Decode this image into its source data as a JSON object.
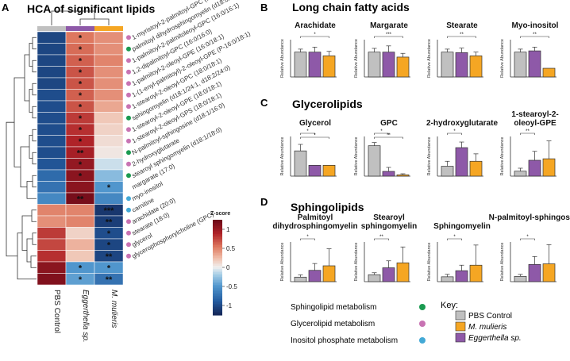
{
  "panels": {
    "a": {
      "letter": "A",
      "title": "HCA of significant lipids"
    },
    "b": {
      "letter": "B",
      "title": "Long chain fatty acids"
    },
    "c": {
      "letter": "C",
      "title": "Glycerolipids"
    },
    "d": {
      "letter": "D",
      "title": "Sphingolipids"
    }
  },
  "colors": {
    "pbs": "#c0c0c0",
    "mulieris": "#f5a623",
    "eggerthella": "#8e59a8",
    "sphingo_dot": "#1a9a50",
    "glycero_dot": "#c873b3",
    "inositol_dot": "#43a9d6"
  },
  "legend": {
    "pathways": [
      {
        "label": "Sphingolipid metabolism",
        "color_key": "sphingo_dot"
      },
      {
        "label": "Glycerolipid metabolism",
        "color_key": "glycero_dot"
      },
      {
        "label": "Inositol phosphate metabolism",
        "color_key": "inositol_dot"
      }
    ],
    "key_title": "Key:",
    "groups": [
      {
        "label": "PBS Control",
        "color_key": "pbs"
      },
      {
        "label": "M. mulieris",
        "color_key": "mulieris"
      },
      {
        "label": "Eggerthella sp.",
        "color_key": "eggerthella"
      }
    ]
  },
  "chart_data": [
    {
      "type": "heatmap",
      "title": "HCA of significant lipids",
      "columns": [
        "PBS Control",
        "Eggerthella sp.",
        "M. mulieris"
      ],
      "colorbar": {
        "title": "Z-score",
        "ticks": [
          "1",
          "0.5",
          "0",
          "-0.5",
          "-1"
        ],
        "range": [
          -1.25,
          1.25
        ]
      },
      "rows": [
        {
          "name": "1-myristoyl-2-palmitoyl-GPC (14:0/16:0)",
          "pathway": "glycero",
          "z": [
            -1.05,
            0.55,
            0.45
          ],
          "stars": [
            "",
            "*",
            ""
          ]
        },
        {
          "name": "palmitoyl dihydrosphingomyelin (d18:0/16:0)",
          "pathway": "sphingo",
          "z": [
            -1.05,
            0.6,
            0.45
          ],
          "stars": [
            "",
            "*",
            ""
          ]
        },
        {
          "name": "1-palmitoyl-2-palmitoleoyl-GPC (16:0/16:1)",
          "pathway": "glycero",
          "z": [
            -1.05,
            0.65,
            0.5
          ],
          "stars": [
            "",
            "*",
            ""
          ]
        },
        {
          "name": "1,2-dipalmitoyl-GPC (16:0/16:0)",
          "pathway": "glycero",
          "z": [
            -1.05,
            0.7,
            0.45
          ],
          "stars": [
            "",
            "*",
            ""
          ]
        },
        {
          "name": "1-palmitoyl-2-oleoyl-GPE (16:0/18:1)",
          "pathway": "glycero",
          "z": [
            -1.05,
            0.7,
            0.45
          ],
          "stars": [
            "",
            "*",
            ""
          ]
        },
        {
          "name": "1-(1-enyl-palmitoyl)-2-oleoyl-GPE (P-16:0/18:1)",
          "pathway": "glycero",
          "z": [
            -1.0,
            0.65,
            0.45
          ],
          "stars": [
            "",
            "*",
            ""
          ]
        },
        {
          "name": "1-stearoyl-2-oleoyl-GPC (18:0/18:1)",
          "pathway": "glycero",
          "z": [
            -1.0,
            0.7,
            0.35
          ],
          "stars": [
            "",
            "*",
            ""
          ]
        },
        {
          "name": "sphingomyelin (d18:1/24:1, d18:2/24:0)",
          "pathway": "sphingo",
          "z": [
            -1.0,
            0.8,
            0.2
          ],
          "stars": [
            "",
            "*",
            ""
          ]
        },
        {
          "name": "1-stearoyl-2-oleoyl-GPE (18:0/18:1)",
          "pathway": "glycero",
          "z": [
            -1.0,
            0.85,
            0.15
          ],
          "stars": [
            "",
            "*",
            ""
          ]
        },
        {
          "name": "1-stearoyl-2-oleoyl-GPS (18:0/18:1)",
          "pathway": "glycero",
          "z": [
            -1.0,
            0.9,
            0.1
          ],
          "stars": [
            "",
            "*",
            ""
          ]
        },
        {
          "name": "N-palmitoyl-sphingosine (d18:1/16:0)",
          "pathway": "sphingo",
          "z": [
            -1.0,
            0.95,
            0.05
          ],
          "stars": [
            "",
            "**",
            ""
          ]
        },
        {
          "name": "2-hydroxyglutarate",
          "pathway": "glycero",
          "z": [
            -0.95,
            1.05,
            -0.1
          ],
          "stars": [
            "",
            "*",
            ""
          ]
        },
        {
          "name": "stearoyl sphingomyelin (d18:1/18:0)",
          "pathway": "sphingo",
          "z": [
            -0.8,
            1.1,
            -0.3
          ],
          "stars": [
            "",
            "*",
            ""
          ]
        },
        {
          "name": "margarate (17:0)",
          "pathway": "",
          "z": [
            -0.75,
            1.1,
            -0.5
          ],
          "stars": [
            "",
            "",
            "*"
          ]
        },
        {
          "name": "myo-inositol",
          "pathway": "inositol",
          "z": [
            -0.6,
            1.2,
            -0.6
          ],
          "stars": [
            "",
            "**",
            ""
          ]
        },
        {
          "name": "carnitine",
          "pathway": "inositol",
          "z": [
            0.5,
            0.5,
            -1.15
          ],
          "stars": [
            "",
            "",
            "***"
          ]
        },
        {
          "name": "arachidate (20:0)",
          "pathway": "glycero",
          "z": [
            0.45,
            0.5,
            -1.1
          ],
          "stars": [
            "",
            "",
            "**"
          ]
        },
        {
          "name": "stearate (18:0)",
          "pathway": "glycero",
          "z": [
            0.8,
            0.15,
            -1.0
          ],
          "stars": [
            "",
            "",
            "*"
          ]
        },
        {
          "name": "glycerol",
          "pathway": "glycero",
          "z": [
            0.75,
            0.3,
            -1.05
          ],
          "stars": [
            "",
            "",
            "*"
          ]
        },
        {
          "name": "glycerophosphorylcholine (GPC)",
          "pathway": "glycero",
          "z": [
            0.85,
            0.2,
            -1.05
          ],
          "stars": [
            "",
            "",
            "**"
          ]
        },
        {
          "name": "",
          "pathway": "",
          "z": [
            1.1,
            -0.5,
            -0.5
          ],
          "stars": [
            "",
            "*",
            "*"
          ]
        },
        {
          "name": "",
          "pathway": "",
          "z": [
            1.15,
            -0.45,
            -0.75
          ],
          "stars": [
            "",
            "*",
            "**"
          ]
        }
      ]
    },
    {
      "type": "bar",
      "panel": "B",
      "title": "Arachidate",
      "ylabel": "Relative Abundance",
      "ylim": [
        0,
        1.5
      ],
      "categories": [
        "PBS Control",
        "Eggerthella sp.",
        "M. mulieris"
      ],
      "values": [
        1.0,
        1.0,
        0.85
      ],
      "errors": [
        0.12,
        0.2,
        0.18
      ],
      "sig": [
        {
          "from": 0,
          "to": 2,
          "label": "*"
        }
      ]
    },
    {
      "type": "bar",
      "panel": "B",
      "title": "Margarate",
      "ylabel": "Relative Abundance",
      "ylim": [
        0,
        1.5
      ],
      "categories": [
        "PBS Control",
        "Eggerthella sp.",
        "M. mulieris"
      ],
      "values": [
        1.0,
        1.0,
        0.8
      ],
      "errors": [
        0.15,
        0.25,
        0.15
      ],
      "sig": [
        {
          "from": 0,
          "to": 2,
          "label": "***"
        }
      ]
    },
    {
      "type": "bar",
      "panel": "B",
      "title": "Stearate",
      "ylabel": "Relative Abundance",
      "ylim": [
        0,
        1.5
      ],
      "categories": [
        "PBS Control",
        "Eggerthella sp.",
        "M. mulieris"
      ],
      "values": [
        1.0,
        0.98,
        0.85
      ],
      "errors": [
        0.12,
        0.18,
        0.15
      ],
      "sig": [
        {
          "from": 0,
          "to": 2,
          "label": "**"
        }
      ]
    },
    {
      "type": "bar",
      "panel": "B",
      "title": "Myo-inositol",
      "ylabel": "Relative Abundance",
      "ylim": [
        0,
        1.5
      ],
      "categories": [
        "PBS Control",
        "Eggerthella sp.",
        "M. mulieris"
      ],
      "values": [
        1.0,
        1.05,
        0.35
      ],
      "errors": [
        0.12,
        0.15,
        0.0
      ],
      "sig": [
        {
          "from": 0,
          "to": 2,
          "label": "**"
        }
      ]
    },
    {
      "type": "bar",
      "panel": "C",
      "title": "Glycerol",
      "ylabel": "Relative Abundance",
      "ylim": [
        0,
        1.1
      ],
      "categories": [
        "PBS Control",
        "Eggerthella sp.",
        "M. mulieris"
      ],
      "values": [
        0.7,
        0.3,
        0.3
      ],
      "errors": [
        0.18,
        0.0,
        0.0
      ],
      "sig": [
        {
          "from": 0,
          "to": 1,
          "label": "*"
        },
        {
          "from": 0,
          "to": 2,
          "label": "*"
        }
      ]
    },
    {
      "type": "bar",
      "panel": "C",
      "title": "GPC",
      "ylabel": "Relative Abundance",
      "ylim": [
        0,
        1.5
      ],
      "categories": [
        "PBS Control",
        "Eggerthella sp.",
        "M. mulieris"
      ],
      "values": [
        1.15,
        0.18,
        0.05
      ],
      "errors": [
        0.12,
        0.15,
        0.04
      ],
      "sig": [
        {
          "from": 0,
          "to": 1,
          "label": "*"
        },
        {
          "from": 0,
          "to": 2,
          "label": "**"
        }
      ]
    },
    {
      "type": "bar",
      "panel": "C",
      "title": "2-hydroxyglutarate",
      "ylabel": "Relative Abundance",
      "ylim": [
        0,
        3.2
      ],
      "categories": [
        "PBS Control",
        "Eggerthella sp.",
        "M. mulieris"
      ],
      "values": [
        0.8,
        2.3,
        1.2
      ],
      "errors": [
        0.4,
        0.45,
        0.6
      ],
      "sig": [
        {
          "from": 0,
          "to": 1,
          "label": "*"
        }
      ]
    },
    {
      "type": "bar",
      "panel": "C",
      "title": "1-stearoyl-2-oleoyl-GPE",
      "ylabel": "Relative Abundance",
      "ylim": [
        0,
        4.0
      ],
      "categories": [
        "PBS Control",
        "Eggerthella sp.",
        "M. mulieris"
      ],
      "values": [
        0.5,
        1.6,
        1.75
      ],
      "errors": [
        0.3,
        0.9,
        1.8
      ],
      "sig": [
        {
          "from": 0,
          "to": 1,
          "label": "**"
        }
      ]
    },
    {
      "type": "bar",
      "panel": "D",
      "title": "Palmitoyl dihydrosphingomyelin",
      "ylabel": "Relative Abundance",
      "ylim": [
        0,
        7.0
      ],
      "categories": [
        "PBS Control",
        "Eggerthella sp.",
        "M. mulieris"
      ],
      "values": [
        0.8,
        2.0,
        2.8
      ],
      "errors": [
        0.4,
        1.2,
        3.0
      ],
      "sig": [
        {
          "from": 0,
          "to": 1,
          "label": "*"
        }
      ]
    },
    {
      "type": "bar",
      "panel": "D",
      "title": "Stearoyl sphingomyelin",
      "ylabel": "Relative Abundance",
      "ylim": [
        0,
        4.0
      ],
      "categories": [
        "PBS Control",
        "Eggerthella sp.",
        "M. mulieris"
      ],
      "values": [
        0.7,
        1.4,
        1.9
      ],
      "errors": [
        0.2,
        0.7,
        1.6
      ],
      "sig": [
        {
          "from": 0,
          "to": 1,
          "label": "**"
        }
      ]
    },
    {
      "type": "bar",
      "panel": "D",
      "title": "Sphingomyelin",
      "ylabel": "Relative Abundance",
      "ylim": [
        0,
        6.5
      ],
      "categories": [
        "PBS Control",
        "Eggerthella sp.",
        "M. mulieris"
      ],
      "values": [
        0.8,
        1.8,
        2.7
      ],
      "errors": [
        0.4,
        0.9,
        3.3
      ],
      "sig": [
        {
          "from": 0,
          "to": 1,
          "label": "*"
        }
      ]
    },
    {
      "type": "bar",
      "panel": "D",
      "title": "N-palmitoyl-sphingosine",
      "ylabel": "Relative Abundance",
      "ylim": [
        0,
        6.0
      ],
      "categories": [
        "PBS Control",
        "Eggerthella sp.",
        "M. mulieris"
      ],
      "values": [
        0.8,
        2.6,
        2.7
      ],
      "errors": [
        0.3,
        1.2,
        2.9
      ],
      "sig": [
        {
          "from": 0,
          "to": 1,
          "label": "*"
        }
      ]
    }
  ]
}
